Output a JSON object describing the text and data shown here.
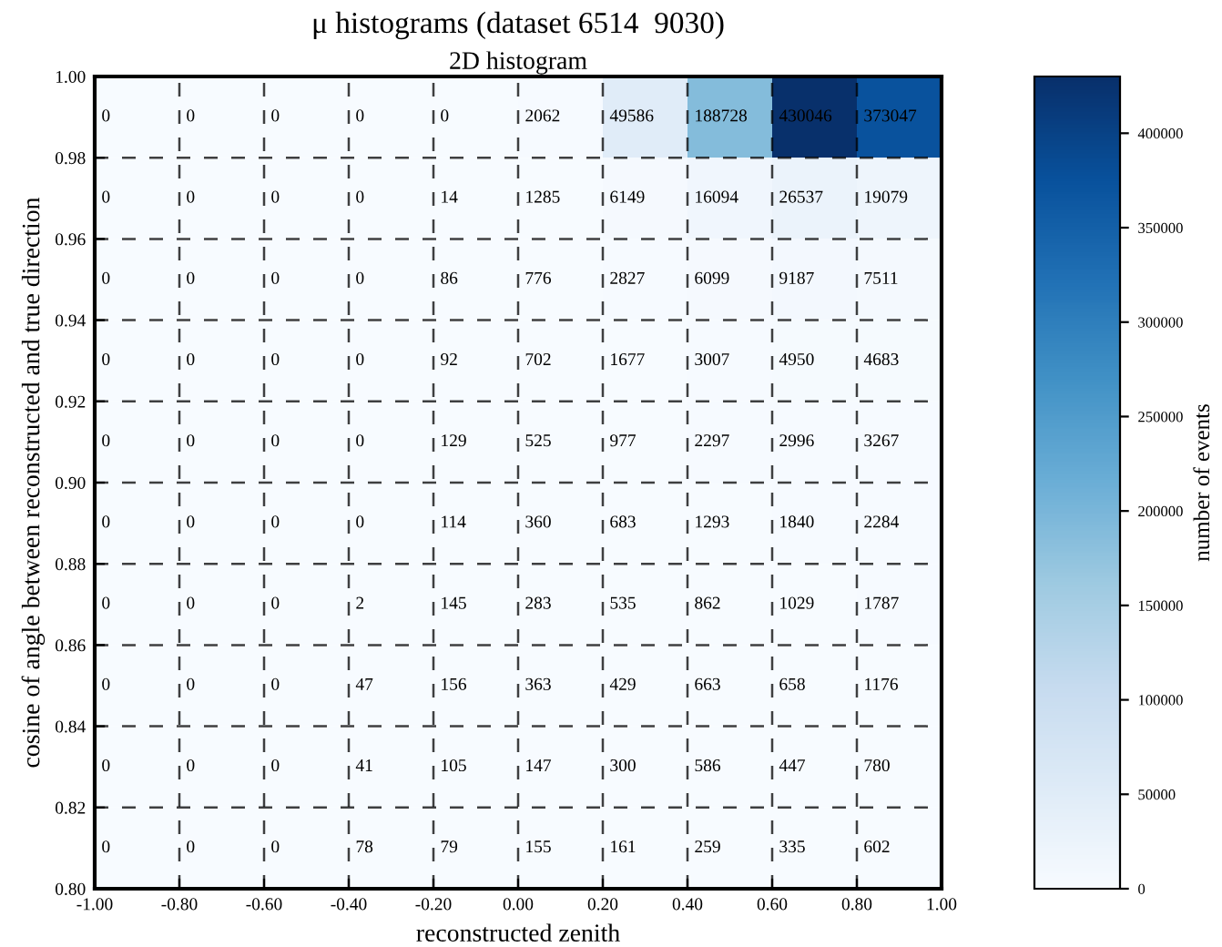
{
  "chart_data": {
    "type": "heatmap",
    "title": "μ histograms (dataset 6514  9030)",
    "subtitle": "2D histogram",
    "xlabel": "reconstructed zenith",
    "ylabel": "cosine of angle between reconstructed and true direction",
    "clabel": "number of events",
    "x": [
      -0.9,
      -0.7,
      -0.5,
      -0.3,
      -0.1,
      0.1,
      0.3,
      0.5,
      0.7,
      0.9
    ],
    "y": [
      0.99,
      0.97,
      0.95,
      0.93,
      0.91,
      0.89,
      0.87,
      0.85,
      0.83,
      0.81
    ],
    "cells": [
      [
        0,
        0,
        0,
        0,
        0,
        2062,
        49586,
        188728,
        430046,
        373047
      ],
      [
        0,
        0,
        0,
        0,
        14,
        1285,
        6149,
        16094,
        26537,
        19079
      ],
      [
        0,
        0,
        0,
        0,
        86,
        776,
        2827,
        6099,
        9187,
        7511
      ],
      [
        0,
        0,
        0,
        0,
        92,
        702,
        1677,
        3007,
        4950,
        4683
      ],
      [
        0,
        0,
        0,
        0,
        129,
        525,
        977,
        2297,
        2996,
        3267
      ],
      [
        0,
        0,
        0,
        0,
        114,
        360,
        683,
        1293,
        1840,
        2284
      ],
      [
        0,
        0,
        0,
        2,
        145,
        283,
        535,
        862,
        1029,
        1787
      ],
      [
        0,
        0,
        0,
        47,
        156,
        363,
        429,
        663,
        658,
        1176
      ],
      [
        0,
        0,
        0,
        41,
        105,
        147,
        300,
        586,
        447,
        780
      ],
      [
        0,
        0,
        0,
        78,
        79,
        155,
        161,
        259,
        335,
        602
      ]
    ],
    "data_labels": true,
    "xlim": [
      -1.0,
      1.0
    ],
    "xticks": [
      {
        "value": -1.0,
        "label": "-1.00"
      },
      {
        "value": -0.8,
        "label": "-0.80"
      },
      {
        "value": -0.6,
        "label": "-0.60"
      },
      {
        "value": -0.4,
        "label": "-0.40"
      },
      {
        "value": -0.2,
        "label": "-0.20"
      },
      {
        "value": 0.0,
        "label": "0.00"
      },
      {
        "value": 0.2,
        "label": "0.20"
      },
      {
        "value": 0.4,
        "label": "0.40"
      },
      {
        "value": 0.6,
        "label": "0.60"
      },
      {
        "value": 0.8,
        "label": "0.80"
      },
      {
        "value": 1.0,
        "label": "1.00"
      }
    ],
    "ylim": [
      0.8,
      1.0
    ],
    "yticks": [
      {
        "value": 0.8,
        "label": "0.80"
      },
      {
        "value": 0.82,
        "label": "0.82"
      },
      {
        "value": 0.84,
        "label": "0.84"
      },
      {
        "value": 0.86,
        "label": "0.86"
      },
      {
        "value": 0.88,
        "label": "0.88"
      },
      {
        "value": 0.9,
        "label": "0.90"
      },
      {
        "value": 0.92,
        "label": "0.92"
      },
      {
        "value": 0.94,
        "label": "0.94"
      },
      {
        "value": 0.96,
        "label": "0.96"
      },
      {
        "value": 0.98,
        "label": "0.98"
      },
      {
        "value": 1.0,
        "label": "1.00"
      }
    ],
    "clim": [
      0,
      430046
    ],
    "cticks": [
      0,
      50000,
      100000,
      150000,
      200000,
      250000,
      300000,
      350000,
      400000
    ],
    "grid": true
  }
}
